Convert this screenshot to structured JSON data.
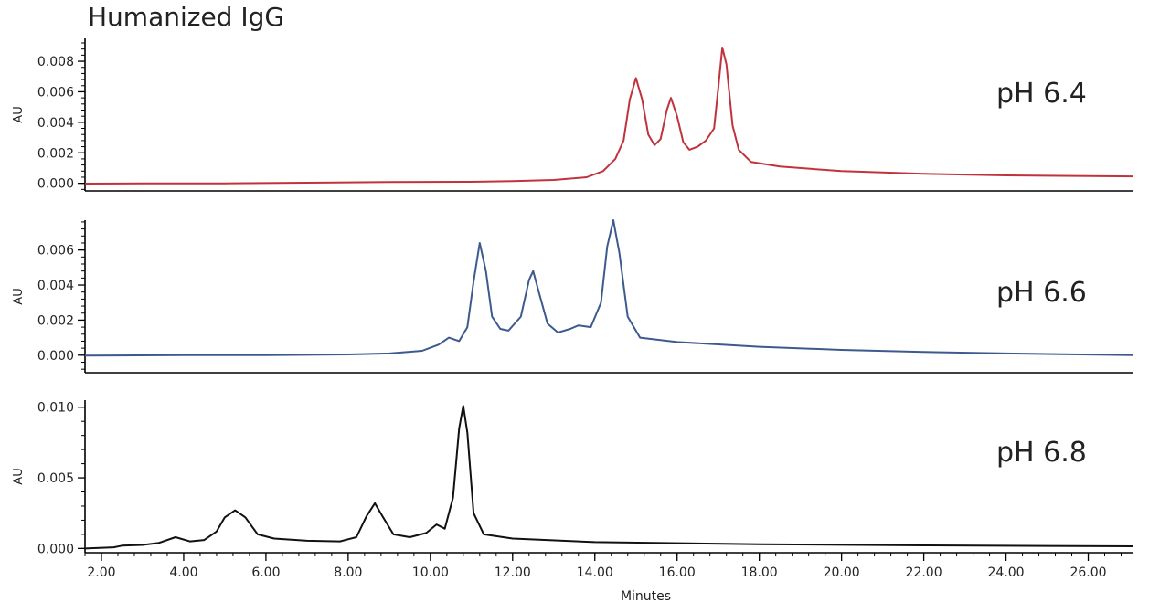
{
  "chart_data": {
    "type": "line",
    "title": "Humanized IgG",
    "xlabel": "Minutes",
    "xlim": [
      1.6,
      27.1
    ],
    "x_ticks": [
      "2.00",
      "4.00",
      "6.00",
      "8.00",
      "10.00",
      "12.00",
      "14.00",
      "16.00",
      "18.00",
      "20.00",
      "22.00",
      "24.00",
      "26.00"
    ],
    "panels": [
      {
        "label": "pH 6.4",
        "ylabel": "AU",
        "ylim": [
          -0.0005,
          0.0095
        ],
        "y_ticks": [
          "0.000",
          "0.002",
          "0.004",
          "0.006",
          "0.008"
        ],
        "color": "#c0333d",
        "points": [
          [
            1.6,
            -2e-05
          ],
          [
            3,
            -1e-05
          ],
          [
            5,
            0.0
          ],
          [
            7,
            4e-05
          ],
          [
            9,
            8e-05
          ],
          [
            11,
            0.0001
          ],
          [
            12,
            0.00014
          ],
          [
            13,
            0.00022
          ],
          [
            13.8,
            0.0004
          ],
          [
            14.2,
            0.0008
          ],
          [
            14.5,
            0.0016
          ],
          [
            14.7,
            0.0028
          ],
          [
            14.85,
            0.0055
          ],
          [
            15.0,
            0.0069
          ],
          [
            15.15,
            0.0055
          ],
          [
            15.3,
            0.0032
          ],
          [
            15.45,
            0.0025
          ],
          [
            15.6,
            0.0029
          ],
          [
            15.75,
            0.0048
          ],
          [
            15.85,
            0.0056
          ],
          [
            16.0,
            0.0044
          ],
          [
            16.15,
            0.0027
          ],
          [
            16.3,
            0.0022
          ],
          [
            16.5,
            0.0024
          ],
          [
            16.7,
            0.0028
          ],
          [
            16.9,
            0.0036
          ],
          [
            17.0,
            0.0062
          ],
          [
            17.1,
            0.0089
          ],
          [
            17.2,
            0.0078
          ],
          [
            17.35,
            0.0038
          ],
          [
            17.5,
            0.0022
          ],
          [
            17.8,
            0.0014
          ],
          [
            18.5,
            0.0011
          ],
          [
            20,
            0.0008
          ],
          [
            22,
            0.00062
          ],
          [
            24,
            0.00052
          ],
          [
            27.1,
            0.00045
          ]
        ]
      },
      {
        "label": "pH 6.6",
        "ylabel": "AU",
        "ylim": [
          -0.001,
          0.0077
        ],
        "y_ticks": [
          "0.000",
          "0.002",
          "0.004",
          "0.006"
        ],
        "color": "#3d5a8e",
        "points": [
          [
            1.6,
            -2e-05
          ],
          [
            4,
            0.0
          ],
          [
            6,
            0.0
          ],
          [
            8,
            4e-05
          ],
          [
            9,
            0.0001
          ],
          [
            9.8,
            0.00025
          ],
          [
            10.2,
            0.0006
          ],
          [
            10.45,
            0.001
          ],
          [
            10.7,
            0.0008
          ],
          [
            10.9,
            0.0016
          ],
          [
            11.05,
            0.0042
          ],
          [
            11.2,
            0.0064
          ],
          [
            11.35,
            0.0048
          ],
          [
            11.5,
            0.0022
          ],
          [
            11.7,
            0.0015
          ],
          [
            11.9,
            0.0014
          ],
          [
            12.2,
            0.0022
          ],
          [
            12.4,
            0.0043
          ],
          [
            12.5,
            0.0048
          ],
          [
            12.65,
            0.0035
          ],
          [
            12.85,
            0.0018
          ],
          [
            13.1,
            0.0013
          ],
          [
            13.4,
            0.0015
          ],
          [
            13.6,
            0.0017
          ],
          [
            13.9,
            0.0016
          ],
          [
            14.15,
            0.003
          ],
          [
            14.3,
            0.0062
          ],
          [
            14.45,
            0.0077
          ],
          [
            14.6,
            0.0058
          ],
          [
            14.8,
            0.0022
          ],
          [
            15.1,
            0.001
          ],
          [
            16,
            0.00075
          ],
          [
            18,
            0.00048
          ],
          [
            20,
            0.0003
          ],
          [
            22,
            0.00018
          ],
          [
            24,
            0.0001
          ],
          [
            27.1,
            0.0
          ]
        ]
      },
      {
        "label": "pH 6.8",
        "ylabel": "AU",
        "ylim": [
          -0.0003,
          0.0105
        ],
        "y_ticks": [
          "0.000",
          "0.005",
          "0.010"
        ],
        "color": "#111111",
        "points": [
          [
            1.6,
            0.0
          ],
          [
            2.3,
            8e-05
          ],
          [
            2.5,
            0.0002
          ],
          [
            3,
            0.00025
          ],
          [
            3.4,
            0.0004
          ],
          [
            3.8,
            0.0008
          ],
          [
            4.15,
            0.0005
          ],
          [
            4.5,
            0.0006
          ],
          [
            4.8,
            0.0012
          ],
          [
            5.0,
            0.0022
          ],
          [
            5.25,
            0.0027
          ],
          [
            5.5,
            0.0022
          ],
          [
            5.8,
            0.001
          ],
          [
            6.2,
            0.0007
          ],
          [
            7,
            0.00055
          ],
          [
            7.8,
            0.0005
          ],
          [
            8.2,
            0.0008
          ],
          [
            8.45,
            0.0023
          ],
          [
            8.65,
            0.0032
          ],
          [
            8.85,
            0.0022
          ],
          [
            9.1,
            0.001
          ],
          [
            9.5,
            0.0008
          ],
          [
            9.9,
            0.0011
          ],
          [
            10.15,
            0.0017
          ],
          [
            10.35,
            0.0014
          ],
          [
            10.55,
            0.0036
          ],
          [
            10.7,
            0.0085
          ],
          [
            10.8,
            0.0101
          ],
          [
            10.9,
            0.0082
          ],
          [
            11.05,
            0.0025
          ],
          [
            11.3,
            0.001
          ],
          [
            12,
            0.0007
          ],
          [
            14,
            0.00045
          ],
          [
            18,
            0.0003
          ],
          [
            22,
            0.00022
          ],
          [
            27.1,
            0.00015
          ]
        ]
      }
    ]
  }
}
